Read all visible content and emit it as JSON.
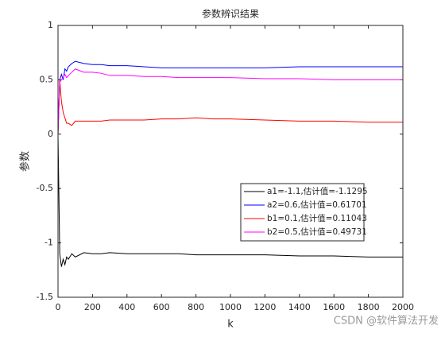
{
  "chart_data": {
    "type": "line",
    "title": "参数辨识结果",
    "xlabel": "k",
    "ylabel": "参数",
    "annotation": "CSDN @软件算法开发",
    "x": [
      0,
      10,
      20,
      30,
      40,
      50,
      60,
      80,
      100,
      150,
      200,
      250,
      300,
      400,
      500,
      600,
      700,
      800,
      900,
      1000,
      1200,
      1400,
      1600,
      1800,
      2000
    ],
    "series": [
      {
        "name": "a1=-1.1,估计值=-1.1295",
        "color": "#000000",
        "values": [
          0,
          -1.1,
          -1.22,
          -1.15,
          -1.2,
          -1.13,
          -1.15,
          -1.1,
          -1.13,
          -1.09,
          -1.1,
          -1.1,
          -1.09,
          -1.1,
          -1.1,
          -1.1,
          -1.1,
          -1.11,
          -1.11,
          -1.11,
          -1.11,
          -1.12,
          -1.12,
          -1.13,
          -1.13
        ]
      },
      {
        "name": "a2=0.6,估计值=0.61701",
        "color": "#0000ff",
        "values": [
          0,
          0.5,
          0.55,
          0.5,
          0.6,
          0.58,
          0.62,
          0.65,
          0.67,
          0.65,
          0.64,
          0.64,
          0.63,
          0.63,
          0.62,
          0.61,
          0.61,
          0.61,
          0.61,
          0.61,
          0.61,
          0.62,
          0.62,
          0.62,
          0.62
        ]
      },
      {
        "name": "b1=0.1,估计值=0.11043",
        "color": "#ff0000",
        "values": [
          0,
          0.5,
          0.3,
          0.2,
          0.15,
          0.1,
          0.1,
          0.08,
          0.12,
          0.12,
          0.12,
          0.12,
          0.13,
          0.13,
          0.13,
          0.14,
          0.14,
          0.15,
          0.14,
          0.14,
          0.13,
          0.12,
          0.12,
          0.11,
          0.11
        ]
      },
      {
        "name": "b2=0.5,估计值=0.49731",
        "color": "#ff00ff",
        "values": [
          0,
          0.48,
          0.5,
          0.52,
          0.55,
          0.52,
          0.54,
          0.57,
          0.6,
          0.57,
          0.57,
          0.56,
          0.54,
          0.54,
          0.53,
          0.53,
          0.52,
          0.52,
          0.52,
          0.52,
          0.51,
          0.51,
          0.5,
          0.5,
          0.5
        ]
      }
    ],
    "xlim": [
      0,
      2000
    ],
    "xticks": [
      0,
      200,
      400,
      600,
      800,
      1000,
      1200,
      1400,
      1600,
      1800,
      2000
    ],
    "ylim": [
      -1.5,
      1
    ],
    "yticks": [
      -1.5,
      -1,
      -0.5,
      0,
      0.5,
      1
    ],
    "legend": "east"
  }
}
